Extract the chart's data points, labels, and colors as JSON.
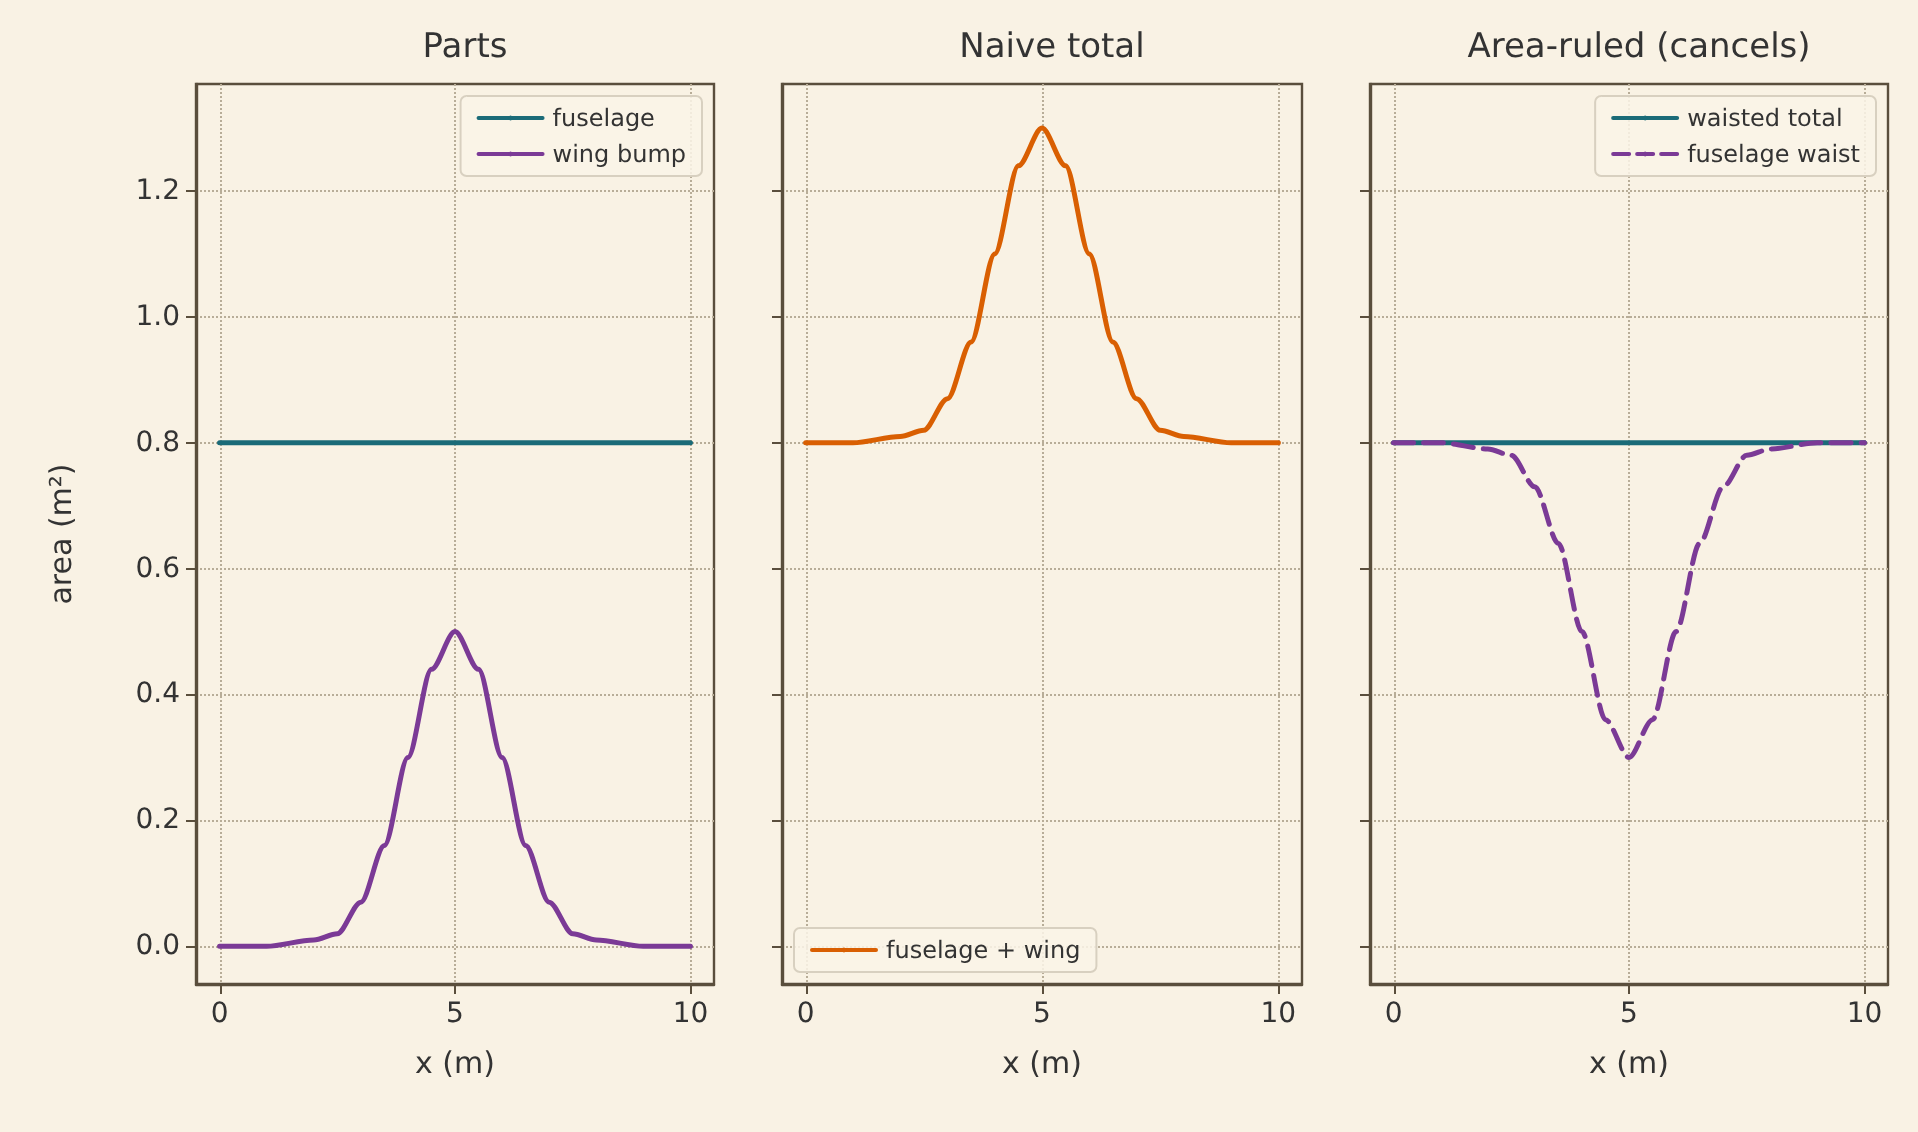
{
  "chart_data": [
    {
      "type": "line",
      "title": "Parts",
      "xlabel": "x (m)",
      "ylabel": "area (m²)",
      "x": [
        0,
        1,
        2,
        2.5,
        3,
        3.5,
        4,
        4.5,
        5,
        5.5,
        6,
        6.5,
        7,
        7.5,
        8,
        9,
        10
      ],
      "series": [
        {
          "name": "fuselage",
          "color": "#1b6b78",
          "values": [
            0.8,
            0.8,
            0.8,
            0.8,
            0.8,
            0.8,
            0.8,
            0.8,
            0.8,
            0.8,
            0.8,
            0.8,
            0.8,
            0.8,
            0.8,
            0.8,
            0.8
          ]
        },
        {
          "name": "wing bump",
          "color": "#7b3a96",
          "values": [
            0,
            0,
            0.01,
            0.02,
            0.07,
            0.16,
            0.3,
            0.44,
            0.5,
            0.44,
            0.3,
            0.16,
            0.07,
            0.02,
            0.01,
            0,
            0
          ]
        }
      ],
      "xlim": [
        -0.5,
        10.5
      ],
      "xticks": [
        0,
        5,
        10
      ],
      "ylim": [
        -0.06,
        1.37
      ],
      "yticks": [
        {
          "value": 0,
          "label": "0.0"
        },
        0.2,
        0.4,
        0.6,
        0.8,
        {
          "value": 1,
          "label": "1.0"
        },
        1.2
      ],
      "grid": true,
      "legend": "top right",
      "marker": "none"
    },
    {
      "type": "line",
      "title": "Naive total",
      "xlabel": "x (m)",
      "x": [
        0,
        1,
        2,
        2.5,
        3,
        3.5,
        4,
        4.5,
        5,
        5.5,
        6,
        6.5,
        7,
        7.5,
        8,
        9,
        10
      ],
      "series": [
        {
          "name": "fuselage + wing",
          "color": "#d95f02",
          "values": [
            0.8,
            0.8,
            0.81,
            0.82,
            0.87,
            0.96,
            1.1,
            1.24,
            1.3,
            1.24,
            1.1,
            0.96,
            0.87,
            0.82,
            0.81,
            0.8,
            0.8
          ]
        }
      ],
      "xlim": [
        -0.5,
        10.5
      ],
      "xticks": [
        0,
        5,
        10
      ],
      "ylim": [
        -0.06,
        1.37
      ],
      "yticks": [
        0,
        0.2,
        0.4,
        0.6,
        0.8,
        1,
        1.2
      ],
      "tick_labels": "x",
      "grid": true,
      "legend": "bottom left",
      "marker": "none"
    },
    {
      "type": "line",
      "title": "Area-ruled (cancels)",
      "xlabel": "x (m)",
      "x": [
        0,
        1,
        2,
        2.5,
        3,
        3.5,
        4,
        4.5,
        5,
        5.5,
        6,
        6.5,
        7,
        7.5,
        8,
        9,
        10
      ],
      "series": [
        {
          "name": "waisted total",
          "color": "#1b6b78",
          "values": [
            0.8,
            0.8,
            0.8,
            0.8,
            0.8,
            0.8,
            0.8,
            0.8,
            0.8,
            0.8,
            0.8,
            0.8,
            0.8,
            0.8,
            0.8,
            0.8,
            0.8
          ]
        },
        {
          "name": "fuselage waist",
          "color": "#7b3a96",
          "line_style": "dashed",
          "values": [
            0.8,
            0.8,
            0.79,
            0.78,
            0.73,
            0.64,
            0.5,
            0.36,
            0.3,
            0.36,
            0.5,
            0.64,
            0.73,
            0.78,
            0.79,
            0.8,
            0.8
          ]
        }
      ],
      "xlim": [
        -0.5,
        10.5
      ],
      "xticks": [
        0,
        5,
        10
      ],
      "ylim": [
        -0.06,
        1.37
      ],
      "yticks": [
        0,
        0.2,
        0.4,
        0.6,
        0.8,
        1,
        1.2
      ],
      "tick_labels": "x",
      "grid": true,
      "legend": "top right",
      "marker": "none"
    }
  ]
}
